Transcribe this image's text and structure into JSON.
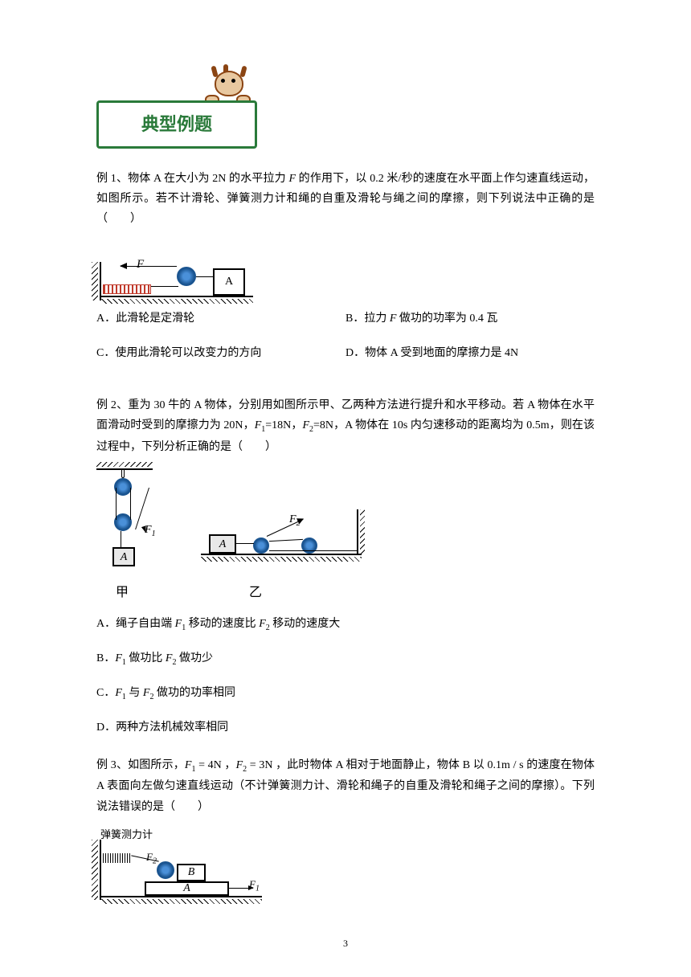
{
  "banner": {
    "title": "典型例题"
  },
  "problem1": {
    "intro": "例 1、物体 A 在大小为 2N 的水平拉力 ",
    "force": "F",
    "intro2": " 的作用下，以 0.2 米/秒的速度在水平面上作匀速直线运动，如图所示。若不计滑轮、弹簧测力计和绳的自重及滑轮与绳之间的摩擦，则下列说法中正确的是（　　）",
    "fig": {
      "force_label": "F",
      "block_label": "A"
    },
    "opts": {
      "a": "A．此滑轮是定滑轮",
      "b_pre": "B．拉力 ",
      "b_f": "F",
      "b_post": " 做功的功率为 0.4 瓦",
      "c": "C．使用此滑轮可以改变力的方向",
      "d": "D．物体 A 受到地面的摩擦力是 4N"
    }
  },
  "problem2": {
    "intro_pre": "例 2、重为 30 牛的 A 物体，分别用如图所示甲、乙两种方法进行提升和水平移动。若 A 物体在水平面滑动时受到的摩擦力为 20N，",
    "f1": "F",
    "f1sub": "1",
    "f1val": "=18N，",
    "f2": "F",
    "f2sub": "2",
    "f2val": "=8N，A 物体在 10s 内匀速移动的距离均为 0.5m，则在该过程中，下列分析正确的是（　　）",
    "fig": {
      "f1_label": "F",
      "f1_sub": "1",
      "f2_label": "F",
      "f2_sub": "2",
      "block_a": "A",
      "label_jia": "甲",
      "label_yi": "乙"
    },
    "opts": {
      "a_pre": "A．绳子自由端 ",
      "a_f1": "F",
      "a_f1sub": "1",
      "a_mid": " 移动的速度比 ",
      "a_f2": "F",
      "a_f2sub": "2",
      "a_post": " 移动的速度大",
      "b_pre": "B．",
      "b_f1": "F",
      "b_f1sub": "1",
      "b_mid": " 做功比 ",
      "b_f2": "F",
      "b_f2sub": "2",
      "b_post": " 做功少",
      "c_pre": "C．",
      "c_f1": "F",
      "c_f1sub": "1",
      "c_mid": " 与 ",
      "c_f2": "F",
      "c_f2sub": "2",
      "c_post": " 做功的功率相同",
      "d": "D．两种方法机械效率相同"
    }
  },
  "problem3": {
    "intro_pre": "例 3、如图所示，",
    "f1": "F",
    "f1sub": "1",
    "f1val": " = 4N ，",
    "f2": "F",
    "f2sub": "2",
    "f2val": " = 3N ，此时物体 A 相对于地面静止，物体 B 以 0.1m / s 的速度在物体 A 表面向左做匀速直线运动（不计弹簧测力计、滑轮和绳子的自重及滑轮和绳子之间的摩擦）。下列说法错误的是（　　）",
    "fig": {
      "spring_label": "弹簧测力计",
      "block_a": "A",
      "block_b": "B",
      "f1_label": "F",
      "f1_sub": "1",
      "f2_label": "F",
      "f2_sub": "2"
    }
  },
  "page_number": "3"
}
